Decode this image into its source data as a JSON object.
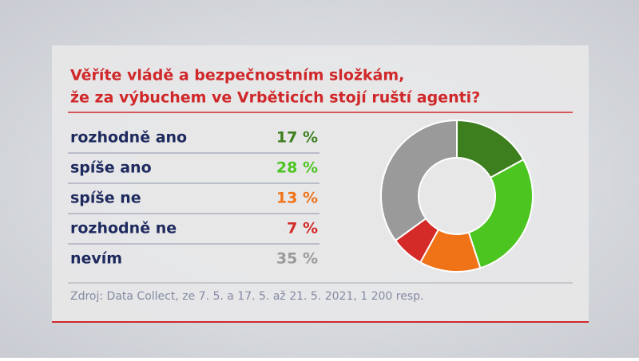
{
  "chart_data": {
    "type": "donut",
    "title": [
      "Věříte vládě a bezpečnostním složkám,",
      "že za výbuchem ve Vrběticích stojí ruští agenti?"
    ],
    "categories": [
      "rozhodně ano",
      "spíše ano",
      "spíše ne",
      "rozhodně ne",
      "nevím"
    ],
    "values": [
      17,
      28,
      13,
      7,
      35
    ],
    "value_labels": [
      "17 %",
      "28 %",
      "13 %",
      "7 %",
      "35 %"
    ],
    "colors": [
      "#3d7f1f",
      "#4cc520",
      "#f07318",
      "#d42a28",
      "#9a9a9a"
    ],
    "source": "Zdroj: Data Collect, ze 7. 5. a 17. 5. až 21. 5. 2021, 1 200 resp."
  }
}
